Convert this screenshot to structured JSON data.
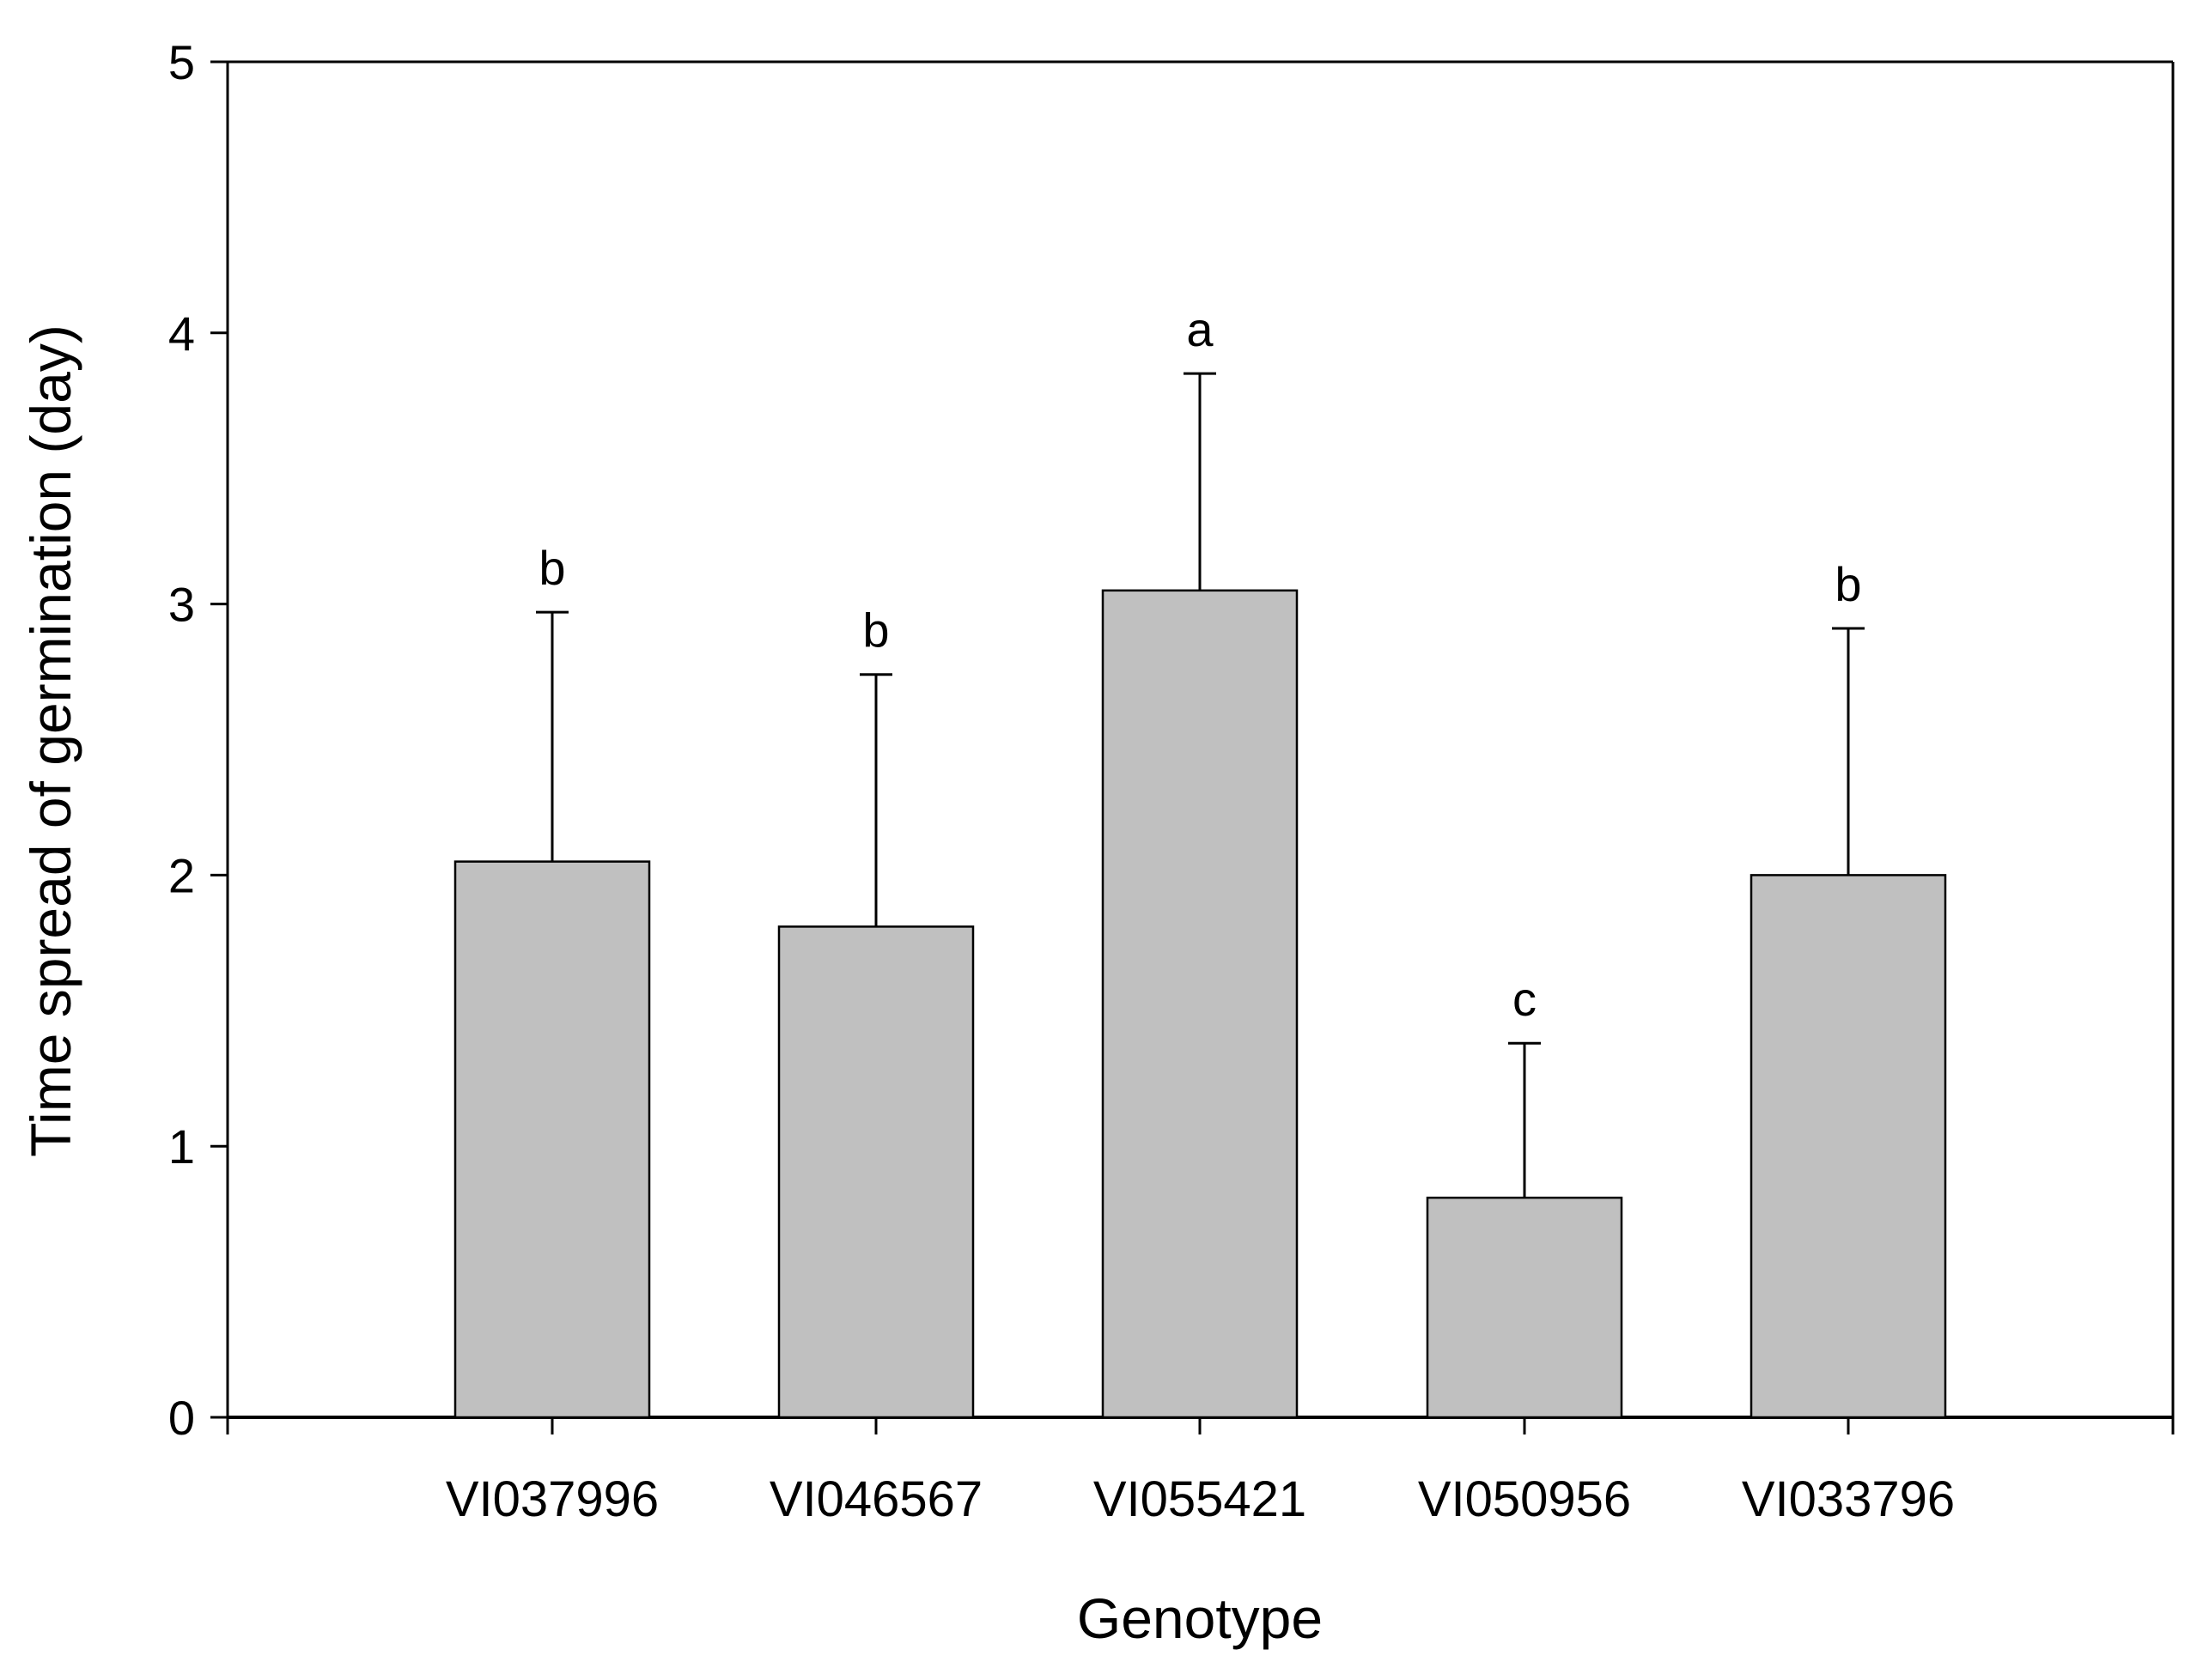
{
  "chart_data": {
    "type": "bar",
    "title": "",
    "xlabel": "Genotype",
    "ylabel": "Time spread of germination (day)",
    "ylim": [
      0,
      5
    ],
    "yticks": [
      0,
      1,
      2,
      3,
      4,
      5
    ],
    "grid": false,
    "categories": [
      "VI037996",
      "VI046567",
      "VI055421",
      "VI050956",
      "VI033796"
    ],
    "values": [
      2.05,
      1.81,
      3.05,
      0.81,
      2.0
    ],
    "errors": [
      0.92,
      0.93,
      0.8,
      0.57,
      0.91
    ],
    "annotations": [
      "b",
      "b",
      "a",
      "c",
      "b"
    ],
    "colors": {
      "bar_fill": "#c0c0c0",
      "bar_stroke": "#000000",
      "axis": "#000000"
    }
  }
}
